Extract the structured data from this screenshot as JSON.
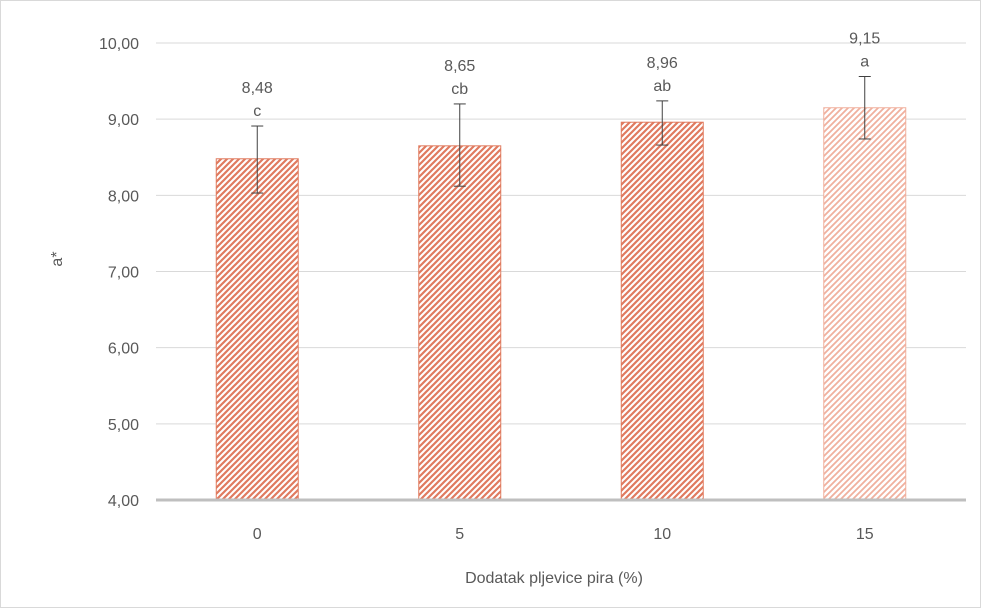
{
  "chart_data": {
    "type": "bar",
    "xlabel": "Dodatak pljevice pira (%)",
    "ylabel": "a*",
    "categories": [
      "0",
      "5",
      "10",
      "15"
    ],
    "values": [
      8.48,
      8.65,
      8.96,
      9.15
    ],
    "value_labels": [
      "8,48",
      "8,65",
      "8,96",
      "9,15"
    ],
    "significance_letters": [
      "c",
      "cb",
      "ab",
      "a"
    ],
    "error_bars": [
      {
        "low": 8.03,
        "high": 8.91
      },
      {
        "low": 8.12,
        "high": 9.2
      },
      {
        "low": 8.66,
        "high": 9.24
      },
      {
        "low": 8.74,
        "high": 9.56
      }
    ],
    "ylim": [
      4.0,
      10.0
    ],
    "yticks": [
      4.0,
      5.0,
      6.0,
      7.0,
      8.0,
      9.0,
      10.0
    ],
    "ytick_labels": [
      "4,00",
      "5,00",
      "6,00",
      "7,00",
      "8,00",
      "9,00",
      "10,00"
    ],
    "grid": true,
    "bar_fill": "hatched",
    "colors": {
      "bar_hatch": "#e07a5f",
      "bar_hatch_light": "#f0b09e",
      "grid": "#d9d9d9",
      "axis": "#bfbfbf",
      "text": "#595959",
      "error_bar": "#404040"
    }
  }
}
